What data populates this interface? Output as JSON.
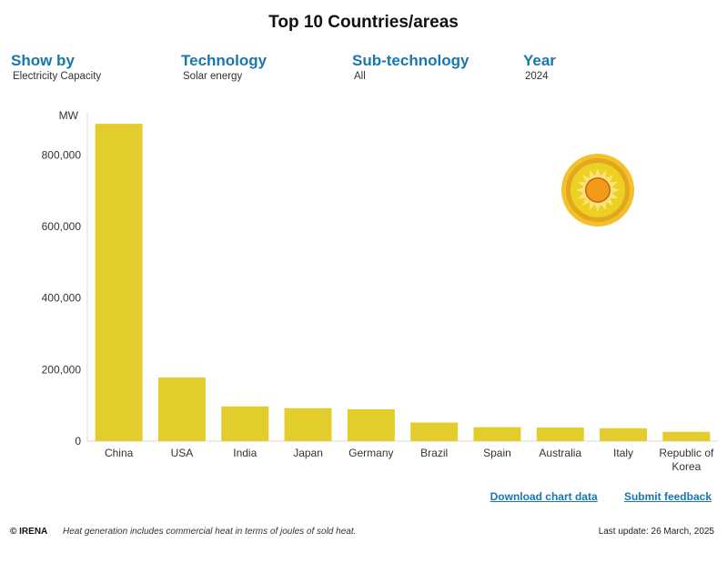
{
  "title": "Top 10 Countries/areas",
  "filters": [
    {
      "label": "Show by",
      "value": "Electricity Capacity"
    },
    {
      "label": "Technology",
      "value": "Solar energy"
    },
    {
      "label": "Sub-technology",
      "value": "All"
    },
    {
      "label": "Year",
      "value": "2024"
    }
  ],
  "chart_data": {
    "type": "bar",
    "title": "Top 10 Countries/areas",
    "ylabel": "MW",
    "xlabel": "",
    "categories": [
      "China",
      "USA",
      "India",
      "Japan",
      "Germany",
      "Brazil",
      "Spain",
      "Australia",
      "Italy",
      "Republic of Korea"
    ],
    "values": [
      887000,
      178000,
      97000,
      92000,
      89000,
      52000,
      39000,
      38000,
      36000,
      26000
    ],
    "ylim": [
      0,
      900000
    ],
    "yticks": [
      0,
      200000,
      400000,
      600000,
      800000
    ],
    "ytick_labels": [
      "0",
      "200,000",
      "400,000",
      "600,000",
      "800,000"
    ],
    "bar_color": "#e3cd2d",
    "grid": false,
    "legend": "none",
    "icon": "sun-icon"
  },
  "links": {
    "download": "Download chart data",
    "feedback": "Submit feedback"
  },
  "footer": {
    "copyright": "© IRENA",
    "note": "Heat generation includes commercial heat in terms of joules of sold heat.",
    "updated": "Last update: 26 March, 2025"
  }
}
